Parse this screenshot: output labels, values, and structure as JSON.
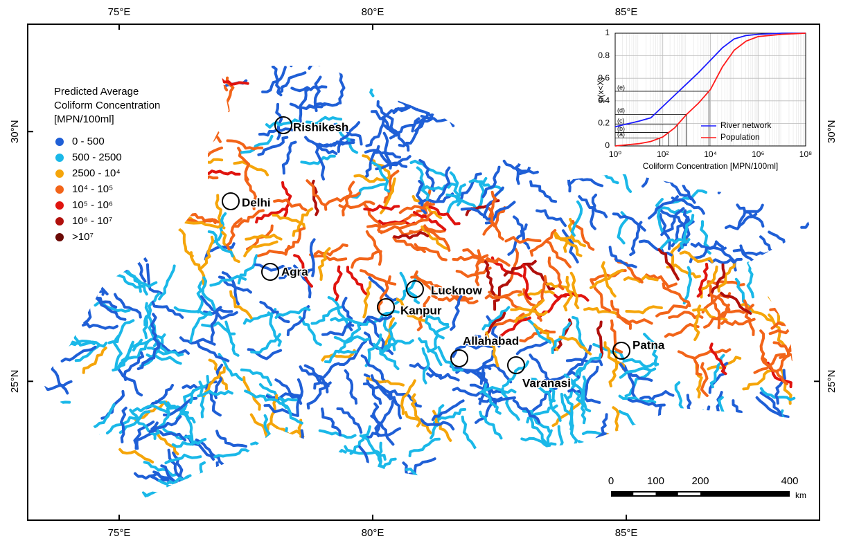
{
  "map": {
    "xlim": [
      73.197,
      88.81
    ],
    "ylim": [
      22.22,
      32.15
    ],
    "lon_ticks": [
      {
        "value": 75,
        "label": "75°E"
      },
      {
        "value": 80,
        "label": "80°E"
      },
      {
        "value": 85,
        "label": "85°E"
      }
    ],
    "lat_ticks": [
      {
        "value": 30,
        "label": "30°N"
      },
      {
        "value": 25,
        "label": "25°N"
      }
    ],
    "legend": {
      "title_lines": [
        "Predicted Average",
        "Coliform Concentration",
        "[MPN/100ml]"
      ],
      "items": [
        {
          "label": "0 - 500",
          "color": "#1f5fd6"
        },
        {
          "label": "500 - 2500",
          "color": "#1ab8e8"
        },
        {
          "label": "2500 - 10⁴",
          "color": "#f5a50a"
        },
        {
          "label": "10⁴ - 10⁵",
          "color": "#f26419"
        },
        {
          "label": "10⁵ - 10⁶",
          "color": "#e0140f"
        },
        {
          "label": "10⁶ - 10⁷",
          "color": "#b0100c"
        },
        {
          "label": ">10⁷",
          "color": "#6b0a06"
        }
      ]
    },
    "cities": [
      "Rishikesh",
      "Delhi",
      "Agra",
      "Lucknow",
      "Kanpur",
      "Allahabad",
      "Varanasi",
      "Patna"
    ],
    "scale_bar": {
      "ticks": [
        0,
        100,
        200,
        400
      ],
      "unit": "km"
    }
  },
  "chart_data": {
    "type": "line",
    "x_label": "Coliform Concentration [MPN/100ml]",
    "y_label": "p(x<X)",
    "log_x": true,
    "grid": true,
    "xlim": [
      1,
      100000000
    ],
    "ylim": [
      0,
      1
    ],
    "xticks": [
      {
        "value": 1,
        "label": "10⁰"
      },
      {
        "value": 100,
        "label": "10²"
      },
      {
        "value": 10000,
        "label": "10⁴"
      },
      {
        "value": 1000000,
        "label": "10⁶"
      },
      {
        "value": 100000000,
        "label": "10⁸"
      }
    ],
    "yticks": [
      0,
      0.2,
      0.4,
      0.6,
      0.8,
      1
    ],
    "x": [
      1,
      10,
      31.6,
      100,
      316,
      1000,
      3162,
      10000,
      31623,
      100000,
      316228,
      1000000,
      10000000,
      100000000
    ],
    "series": [
      {
        "name": "River network",
        "color": "#1a1aff",
        "values": [
          0.17,
          0.22,
          0.25,
          0.35,
          0.45,
          0.55,
          0.65,
          0.76,
          0.87,
          0.95,
          0.98,
          0.99,
          1,
          1
        ]
      },
      {
        "name": "Population",
        "color": "#ff1a1a",
        "values": [
          0,
          0.02,
          0.04,
          0.08,
          0.16,
          0.28,
          0.38,
          0.5,
          0.7,
          0.85,
          0.93,
          0.97,
          0.99,
          1
        ]
      }
    ],
    "reference_levels": [
      {
        "label": "(a)",
        "value": 0.07
      },
      {
        "label": "(b)",
        "value": 0.12
      },
      {
        "label": "(c)",
        "value": 0.19
      },
      {
        "label": "(d)",
        "value": 0.28
      },
      {
        "label": "(e)",
        "value": 0.485
      }
    ]
  }
}
